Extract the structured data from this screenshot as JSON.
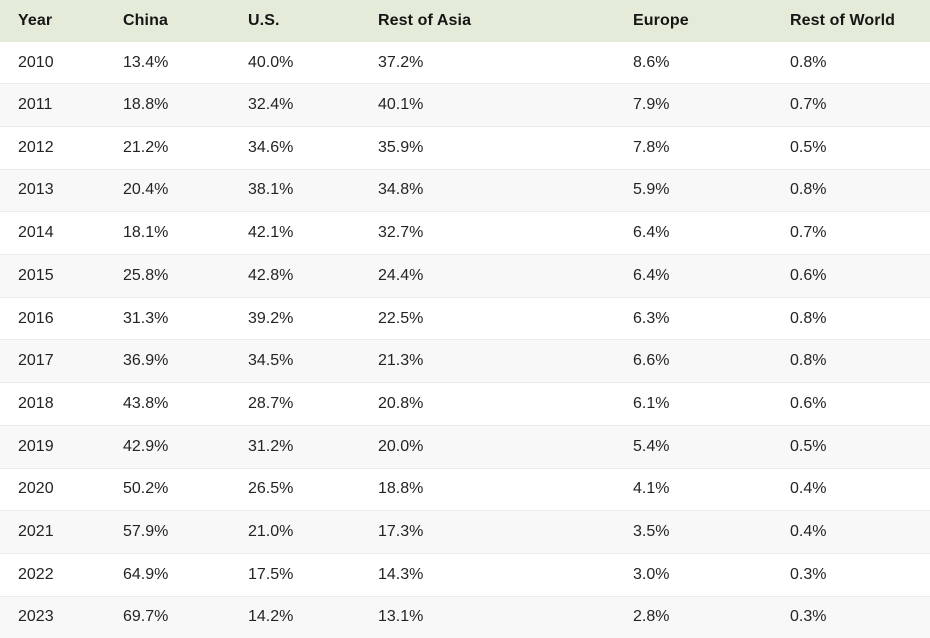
{
  "table": {
    "columns": [
      "Year",
      "China",
      "U.S.",
      "Rest of Asia",
      "Europe",
      "Rest of World"
    ],
    "rows": [
      [
        "2010",
        "13.4%",
        "40.0%",
        "37.2%",
        "8.6%",
        "0.8%"
      ],
      [
        "2011",
        "18.8%",
        "32.4%",
        "40.1%",
        "7.9%",
        "0.7%"
      ],
      [
        "2012",
        "21.2%",
        "34.6%",
        "35.9%",
        "7.8%",
        "0.5%"
      ],
      [
        "2013",
        "20.4%",
        "38.1%",
        "34.8%",
        "5.9%",
        "0.8%"
      ],
      [
        "2014",
        "18.1%",
        "42.1%",
        "32.7%",
        "6.4%",
        "0.7%"
      ],
      [
        "2015",
        "25.8%",
        "42.8%",
        "24.4%",
        "6.4%",
        "0.6%"
      ],
      [
        "2016",
        "31.3%",
        "39.2%",
        "22.5%",
        "6.3%",
        "0.8%"
      ],
      [
        "2017",
        "36.9%",
        "34.5%",
        "21.3%",
        "6.6%",
        "0.8%"
      ],
      [
        "2018",
        "43.8%",
        "28.7%",
        "20.8%",
        "6.1%",
        "0.6%"
      ],
      [
        "2019",
        "42.9%",
        "31.2%",
        "20.0%",
        "5.4%",
        "0.5%"
      ],
      [
        "2020",
        "50.2%",
        "26.5%",
        "18.8%",
        "4.1%",
        "0.4%"
      ],
      [
        "2021",
        "57.9%",
        "21.0%",
        "17.3%",
        "3.5%",
        "0.4%"
      ],
      [
        "2022",
        "64.9%",
        "17.5%",
        "14.3%",
        "3.0%",
        "0.3%"
      ],
      [
        "2023",
        "69.7%",
        "14.2%",
        "13.1%",
        "2.8%",
        "0.3%"
      ]
    ]
  },
  "colors": {
    "header_bg": "#e4ecd9",
    "row_stripe": "#f8f8f8",
    "row_border": "#ececec",
    "header_text": "#161616",
    "body_text": "#242424"
  },
  "chart_data": {
    "type": "table",
    "title": "",
    "categories": [
      "2010",
      "2011",
      "2012",
      "2013",
      "2014",
      "2015",
      "2016",
      "2017",
      "2018",
      "2019",
      "2020",
      "2021",
      "2022",
      "2023"
    ],
    "series": [
      {
        "name": "China",
        "values": [
          13.4,
          18.8,
          21.2,
          20.4,
          18.1,
          25.8,
          31.3,
          36.9,
          43.8,
          42.9,
          50.2,
          57.9,
          64.9,
          69.7
        ]
      },
      {
        "name": "U.S.",
        "values": [
          40.0,
          32.4,
          34.6,
          38.1,
          42.1,
          42.8,
          39.2,
          34.5,
          28.7,
          31.2,
          26.5,
          21.0,
          17.5,
          14.2
        ]
      },
      {
        "name": "Rest of Asia",
        "values": [
          37.2,
          40.1,
          35.9,
          34.8,
          32.7,
          24.4,
          22.5,
          21.3,
          20.8,
          20.0,
          18.8,
          17.3,
          14.3,
          13.1
        ]
      },
      {
        "name": "Europe",
        "values": [
          8.6,
          7.9,
          7.8,
          5.9,
          6.4,
          6.4,
          6.3,
          6.6,
          6.1,
          5.4,
          4.1,
          3.5,
          3.0,
          2.8
        ]
      },
      {
        "name": "Rest of World",
        "values": [
          0.8,
          0.7,
          0.5,
          0.8,
          0.7,
          0.6,
          0.8,
          0.8,
          0.6,
          0.5,
          0.4,
          0.4,
          0.3,
          0.3
        ]
      }
    ],
    "unit": "%",
    "xlabel": "Year",
    "ylabel": ""
  }
}
